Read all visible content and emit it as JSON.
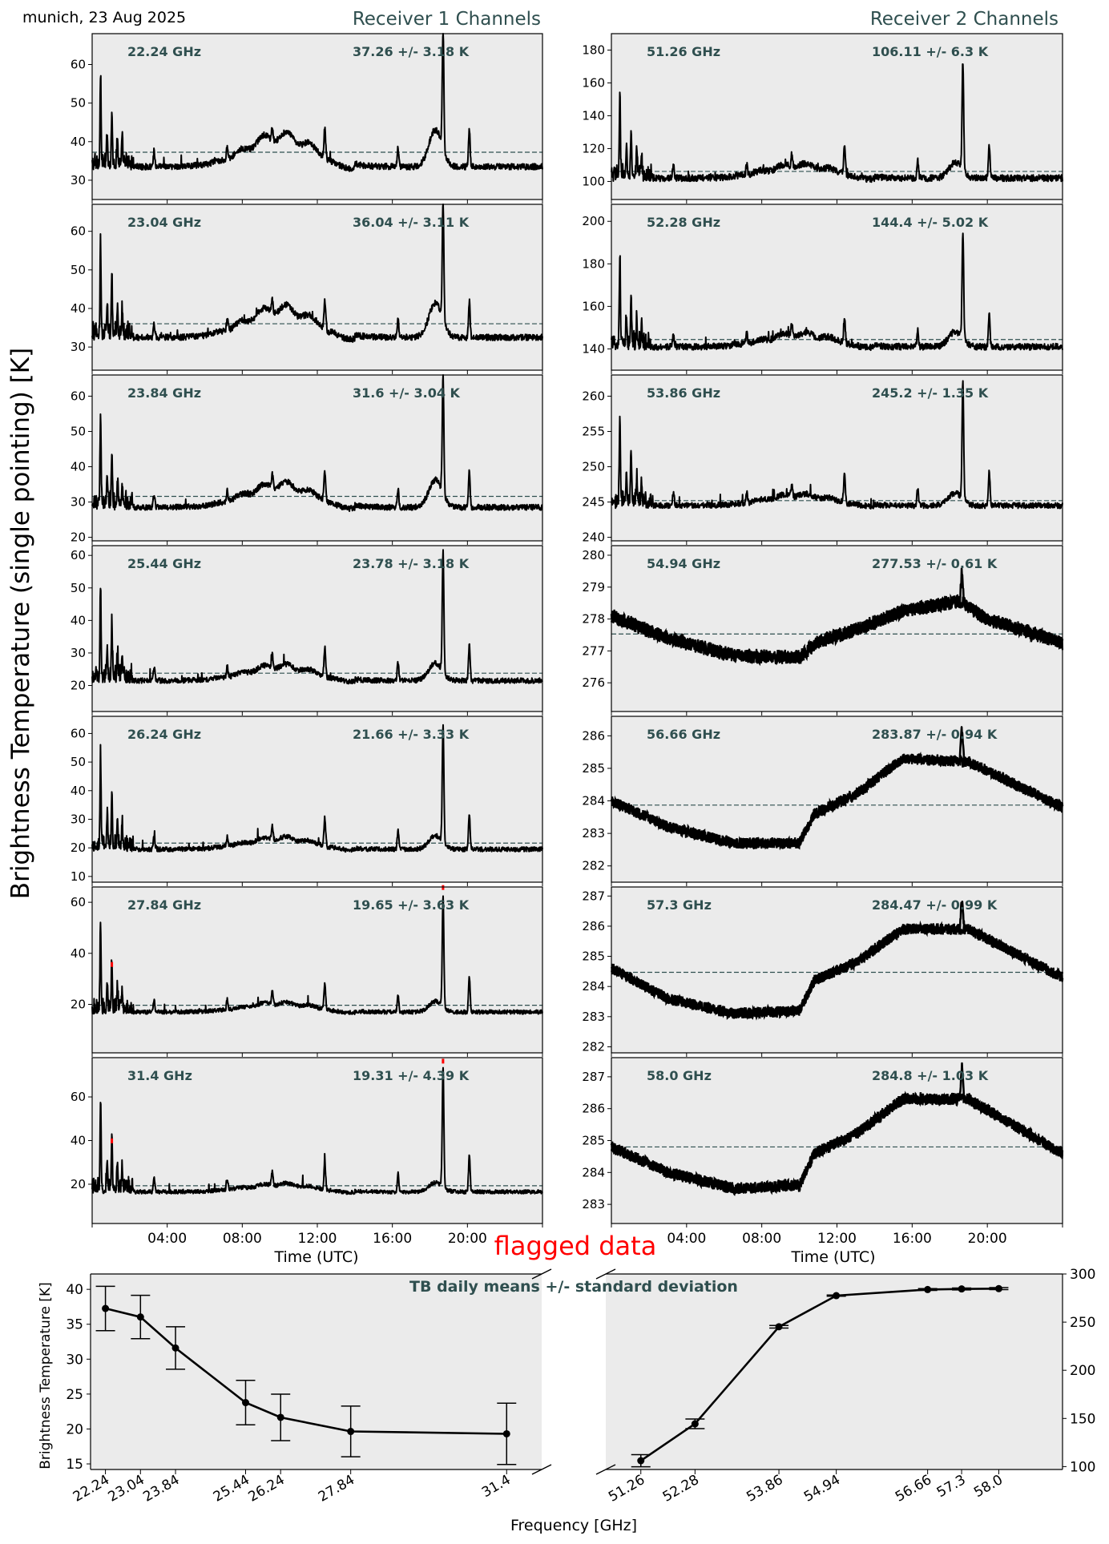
{
  "header": {
    "location_date": "munich, 23 Aug 2025",
    "receiver1_title": "Receiver 1 Channels",
    "receiver2_title": "Receiver 2 Channels",
    "ylabel": "Brightness Temperature (single pointing) [K]",
    "flagged_label": "flagged data"
  },
  "colors": {
    "panel_bg": "#ebebeb",
    "annotation": "#2f4f4f",
    "series": "#000000",
    "flagged": "#ff0000",
    "mean_line": "#2f4f4f"
  },
  "chart_data": [
    {
      "type": "line",
      "receiver": 1,
      "xlabel": "Time (UTC)",
      "xticks": [
        "04:00",
        "08:00",
        "12:00",
        "16:00",
        "20:00"
      ],
      "xlim_hours": [
        0,
        24
      ],
      "panels": [
        {
          "freq": "22.24 GHz",
          "stat": "37.26 +/- 3.18 K",
          "mean": 37.26,
          "ylim": [
            25,
            68
          ],
          "yticks": [
            30,
            40,
            50,
            60
          ],
          "base": 33.5,
          "bump": 8.0,
          "spike_scale": 1.0,
          "noise": 0.8
        },
        {
          "freq": "23.04 GHz",
          "stat": "36.04 +/- 3.11 K",
          "mean": 36.04,
          "ylim": [
            24,
            67
          ],
          "yticks": [
            30,
            40,
            50,
            60
          ],
          "base": 32.5,
          "bump": 7.5,
          "spike_scale": 1.0,
          "noise": 0.8
        },
        {
          "freq": "23.84 GHz",
          "stat": "31.6 +/- 3.04 K",
          "mean": 31.6,
          "ylim": [
            19,
            66
          ],
          "yticks": [
            20,
            30,
            40,
            50,
            60
          ],
          "base": 28.5,
          "bump": 6.5,
          "spike_scale": 1.0,
          "noise": 0.8
        },
        {
          "freq": "25.44 GHz",
          "stat": "23.78 +/- 3.18 K",
          "mean": 23.78,
          "ylim": [
            12,
            63
          ],
          "yticks": [
            20,
            30,
            40,
            50,
            60
          ],
          "base": 21.5,
          "bump": 4.5,
          "spike_scale": 1.0,
          "noise": 0.8
        },
        {
          "freq": "26.24 GHz",
          "stat": "21.66 +/- 3.33 K",
          "mean": 21.66,
          "ylim": [
            8,
            66
          ],
          "yticks": [
            10,
            20,
            30,
            40,
            50,
            60
          ],
          "base": 19.5,
          "bump": 4.0,
          "spike_scale": 1.0,
          "noise": 0.8
        },
        {
          "freq": "27.84 GHz",
          "stat": "19.65 +/- 3.63 K",
          "mean": 19.65,
          "ylim": [
            1,
            66
          ],
          "yticks": [
            20,
            40,
            60
          ],
          "base": 17.0,
          "bump": 3.5,
          "spike_scale": 1.0,
          "noise": 0.8,
          "flagged": true
        },
        {
          "freq": "31.4 GHz",
          "stat": "19.31 +/- 4.39 K",
          "mean": 19.31,
          "ylim": [
            2,
            78
          ],
          "yticks": [
            20,
            40,
            60
          ],
          "base": 16.5,
          "bump": 3.5,
          "spike_scale": 1.2,
          "noise": 0.9,
          "flagged": true
        }
      ]
    },
    {
      "type": "line",
      "receiver": 2,
      "xlabel": "Time (UTC)",
      "xticks": [
        "04:00",
        "08:00",
        "12:00",
        "16:00",
        "20:00"
      ],
      "xlim_hours": [
        0,
        24
      ],
      "panels": [
        {
          "freq": "51.26 GHz",
          "stat": "106.11 +/- 6.3 K",
          "mean": 106.11,
          "ylim": [
            89,
            190
          ],
          "yticks": [
            100,
            120,
            140,
            160,
            180
          ],
          "mode": "spiky",
          "base": 102.0,
          "bump": 8.0,
          "spike_scale": 2.6,
          "noise": 2.0
        },
        {
          "freq": "52.28 GHz",
          "stat": "144.4 +/- 5.02 K",
          "mean": 144.4,
          "ylim": [
            130,
            208
          ],
          "yticks": [
            140,
            160,
            180,
            200
          ],
          "mode": "spiky",
          "base": 141.0,
          "bump": 6.0,
          "spike_scale": 2.0,
          "noise": 1.5
        },
        {
          "freq": "53.86 GHz",
          "stat": "245.2 +/- 1.35 K",
          "mean": 245.2,
          "ylim": [
            239.5,
            263.0
          ],
          "yticks": [
            240,
            245,
            250,
            255,
            260
          ],
          "mode": "spiky",
          "base": 244.5,
          "bump": 1.5,
          "spike_scale": 0.6,
          "noise": 0.4
        },
        {
          "freq": "54.94 GHz",
          "stat": "277.53 +/- 0.61 K",
          "mean": 277.53,
          "ylim": [
            275.1,
            280.3
          ],
          "yticks": [
            276,
            277,
            278,
            279,
            280
          ],
          "mode": "smooth",
          "curve": [
            [
              0,
              278.1
            ],
            [
              3,
              277.4
            ],
            [
              6.5,
              276.85
            ],
            [
              10,
              276.8
            ],
            [
              11,
              277.3
            ],
            [
              13,
              277.65
            ],
            [
              15.5,
              278.25
            ],
            [
              18.5,
              278.55
            ],
            [
              20,
              278.0
            ],
            [
              24,
              277.25
            ]
          ],
          "noise": 0.18
        },
        {
          "freq": "56.66 GHz",
          "stat": "283.87 +/- 0.94 K",
          "mean": 283.87,
          "ylim": [
            281.5,
            286.6
          ],
          "yticks": [
            282,
            283,
            284,
            285,
            286
          ],
          "mode": "smooth",
          "curve": [
            [
              0,
              284.0
            ],
            [
              3,
              283.2
            ],
            [
              6.5,
              282.7
            ],
            [
              10,
              282.7
            ],
            [
              10.8,
              283.6
            ],
            [
              13,
              284.2
            ],
            [
              15.5,
              285.3
            ],
            [
              19,
              285.2
            ],
            [
              24,
              283.8
            ]
          ],
          "noise": 0.14
        },
        {
          "freq": "57.3 GHz",
          "stat": "284.47 +/- 0.99 K",
          "mean": 284.47,
          "ylim": [
            281.8,
            287.3
          ],
          "yticks": [
            282,
            283,
            284,
            285,
            286,
            287
          ],
          "mode": "smooth",
          "curve": [
            [
              0,
              284.6
            ],
            [
              3,
              283.6
            ],
            [
              6.5,
              283.1
            ],
            [
              10,
              283.2
            ],
            [
              10.8,
              284.2
            ],
            [
              13,
              284.8
            ],
            [
              15.5,
              285.9
            ],
            [
              19,
              285.9
            ],
            [
              24,
              284.3
            ]
          ],
          "noise": 0.15
        },
        {
          "freq": "58.0 GHz",
          "stat": "284.8 +/- 1.03 K",
          "mean": 284.8,
          "ylim": [
            282.4,
            287.6
          ],
          "yticks": [
            283,
            284,
            285,
            286,
            287
          ],
          "mode": "smooth",
          "curve": [
            [
              0,
              284.8
            ],
            [
              3,
              284.0
            ],
            [
              6.5,
              283.5
            ],
            [
              10,
              283.6
            ],
            [
              10.8,
              284.6
            ],
            [
              13,
              285.2
            ],
            [
              15.5,
              286.3
            ],
            [
              19,
              286.3
            ],
            [
              24,
              284.6
            ]
          ],
          "noise": 0.15
        }
      ]
    },
    {
      "type": "line_errorbar",
      "title": "TB daily means +/- standard deviation",
      "xlabel": "Frequency [GHz]",
      "ylabel": "Brightness Temperature [K]",
      "left": {
        "ylim": [
          14.2,
          42.2
        ],
        "yticks": [
          15,
          20,
          25,
          30,
          35,
          40
        ],
        "freqs": [
          22.24,
          23.04,
          23.84,
          25.44,
          26.24,
          27.84,
          31.4
        ],
        "freq_labels": [
          "22.24",
          "23.04",
          "23.84",
          "25.44",
          "26.24",
          "27.84",
          "31.4"
        ],
        "means": [
          37.26,
          36.04,
          31.6,
          23.78,
          21.66,
          19.65,
          19.31
        ],
        "stds": [
          3.18,
          3.11,
          3.04,
          3.18,
          3.33,
          3.63,
          4.39
        ]
      },
      "right": {
        "ylim": [
          97,
          300
        ],
        "yticks": [
          100,
          150,
          200,
          250,
          300
        ],
        "freqs": [
          51.26,
          52.28,
          53.86,
          54.94,
          56.66,
          57.3,
          58.0
        ],
        "freq_labels": [
          "51.26",
          "52.28",
          "53.86",
          "54.94",
          "56.66",
          "57.3",
          "58.0"
        ],
        "means": [
          106.11,
          144.4,
          245.2,
          277.53,
          283.87,
          284.47,
          284.8
        ],
        "stds": [
          6.3,
          5.02,
          1.35,
          0.61,
          0.94,
          0.99,
          1.03
        ]
      }
    }
  ]
}
